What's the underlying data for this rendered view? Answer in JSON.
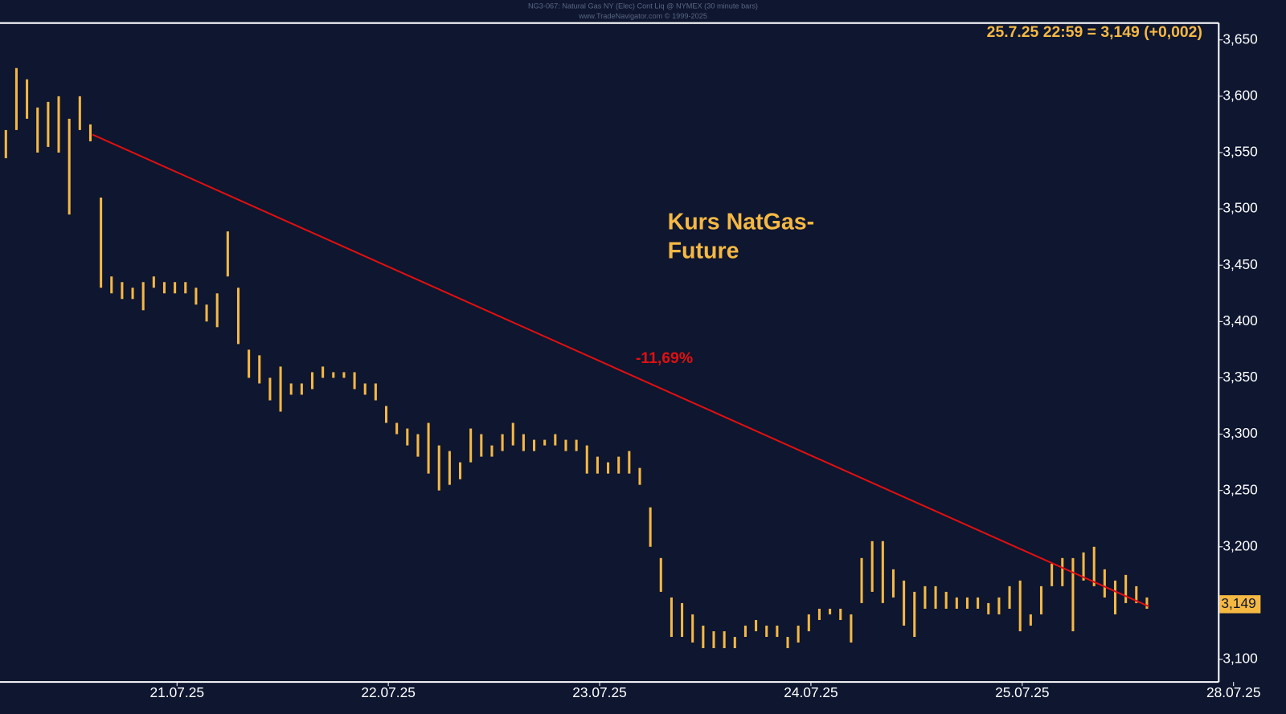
{
  "chart_data": {
    "type": "range",
    "header": "NG3-067: Natural Gas NY (Elec) Cont Liq @ NYMEX (30 minute bars)",
    "source": "www.TradeNavigator.com © 1999-2025",
    "title": "Kurs NatGas-\nFuture",
    "quote": "25.7.25 22:59 = 3,149 (+0,002)",
    "last": {
      "value": 3.149,
      "label": "3,149"
    },
    "color": "#f5b843",
    "x": [
      0.19,
      0.24,
      0.29,
      0.34,
      0.39,
      0.44,
      0.49,
      0.54,
      0.59,
      0.64,
      0.69,
      0.74,
      0.79,
      0.84,
      0.89,
      0.94,
      0.99,
      1.04,
      1.09,
      1.14,
      1.19,
      1.24,
      1.29,
      1.34,
      1.39,
      1.44,
      1.49,
      1.54,
      1.59,
      1.64,
      1.69,
      1.74,
      1.79,
      1.84,
      1.89,
      1.94,
      1.99,
      2.04,
      2.09,
      2.14,
      2.19,
      2.24,
      2.29,
      2.34,
      2.39,
      2.44,
      2.49,
      2.54,
      2.59,
      2.64,
      2.69,
      2.74,
      2.79,
      2.84,
      2.89,
      2.94,
      2.99,
      3.04,
      3.09,
      3.14,
      3.19,
      3.24,
      3.29,
      3.34,
      3.39,
      3.44,
      3.49,
      3.54,
      3.59,
      3.64,
      3.69,
      3.74,
      3.79,
      3.84,
      3.89,
      3.94,
      3.99,
      4.04,
      4.09,
      4.14,
      4.19,
      4.24,
      4.29,
      4.34,
      4.39,
      4.44,
      4.49,
      4.54,
      4.59,
      4.64,
      4.69,
      4.74,
      4.79,
      4.84,
      4.89,
      4.94,
      4.99,
      5.04,
      5.09,
      5.14,
      5.19,
      5.24,
      5.29,
      5.34,
      5.39,
      5.44,
      5.49,
      5.54,
      5.59
    ],
    "high": [
      3.57,
      3.625,
      3.615,
      3.59,
      3.595,
      3.6,
      3.58,
      3.6,
      3.575,
      3.51,
      3.44,
      3.435,
      3.43,
      3.435,
      3.44,
      3.435,
      3.435,
      3.435,
      3.43,
      3.415,
      3.425,
      3.48,
      3.43,
      3.375,
      3.37,
      3.35,
      3.36,
      3.345,
      3.345,
      3.355,
      3.36,
      3.355,
      3.355,
      3.355,
      3.345,
      3.345,
      3.325,
      3.31,
      3.305,
      3.3,
      3.31,
      3.29,
      3.285,
      3.275,
      3.305,
      3.3,
      3.29,
      3.3,
      3.31,
      3.3,
      3.295,
      3.295,
      3.3,
      3.295,
      3.295,
      3.29,
      3.28,
      3.275,
      3.28,
      3.285,
      3.27,
      3.235,
      3.19,
      3.155,
      3.15,
      3.14,
      3.13,
      3.125,
      3.125,
      3.12,
      3.13,
      3.135,
      3.13,
      3.13,
      3.12,
      3.13,
      3.14,
      3.145,
      3.145,
      3.145,
      3.14,
      3.19,
      3.205,
      3.205,
      3.18,
      3.17,
      3.16,
      3.165,
      3.165,
      3.16,
      3.155,
      3.155,
      3.155,
      3.15,
      3.155,
      3.165,
      3.17,
      3.14,
      3.165,
      3.185,
      3.19,
      3.19,
      3.195,
      3.2,
      3.18,
      3.17,
      3.175,
      3.165,
      3.155
    ],
    "low": [
      3.545,
      3.57,
      3.58,
      3.55,
      3.555,
      3.55,
      3.495,
      3.57,
      3.56,
      3.43,
      3.425,
      3.42,
      3.42,
      3.41,
      3.43,
      3.425,
      3.425,
      3.425,
      3.415,
      3.4,
      3.395,
      3.44,
      3.38,
      3.35,
      3.345,
      3.33,
      3.32,
      3.335,
      3.335,
      3.34,
      3.35,
      3.35,
      3.35,
      3.34,
      3.335,
      3.33,
      3.31,
      3.3,
      3.29,
      3.28,
      3.265,
      3.25,
      3.255,
      3.26,
      3.275,
      3.28,
      3.28,
      3.285,
      3.29,
      3.285,
      3.285,
      3.29,
      3.29,
      3.285,
      3.285,
      3.265,
      3.265,
      3.265,
      3.265,
      3.265,
      3.255,
      3.2,
      3.16,
      3.12,
      3.12,
      3.115,
      3.11,
      3.11,
      3.11,
      3.11,
      3.12,
      3.125,
      3.12,
      3.12,
      3.11,
      3.115,
      3.125,
      3.135,
      3.14,
      3.135,
      3.115,
      3.15,
      3.16,
      3.15,
      3.155,
      3.13,
      3.12,
      3.145,
      3.145,
      3.145,
      3.145,
      3.145,
      3.145,
      3.14,
      3.14,
      3.145,
      3.125,
      3.13,
      3.14,
      3.165,
      3.165,
      3.125,
      3.17,
      3.165,
      3.155,
      3.14,
      3.15,
      3.15,
      3.145
    ],
    "trendline": {
      "x": [
        0.6,
        5.6
      ],
      "values": [
        3.566,
        3.147
      ],
      "color": "#e01010",
      "label": "-11,69%"
    },
    "xlim": [
      0.17,
      5.93
    ],
    "ylim": [
      3.08,
      3.665
    ],
    "xticks": [
      {
        "value": 1,
        "label": "21.07.25"
      },
      {
        "value": 2,
        "label": "22.07.25"
      },
      {
        "value": 3,
        "label": "23.07.25"
      },
      {
        "value": 4,
        "label": "24.07.25"
      },
      {
        "value": 5,
        "label": "25.07.25"
      },
      {
        "value": 6,
        "label": "28.07.25"
      }
    ],
    "yticks": [
      {
        "value": 3.65,
        "label": "3,650"
      },
      {
        "value": 3.6,
        "label": "3,600"
      },
      {
        "value": 3.55,
        "label": "3,550"
      },
      {
        "value": 3.5,
        "label": "3,500"
      },
      {
        "value": 3.45,
        "label": "3,450"
      },
      {
        "value": 3.4,
        "label": "3,400"
      },
      {
        "value": 3.35,
        "label": "3,350"
      },
      {
        "value": 3.3,
        "label": "3,300"
      },
      {
        "value": 3.25,
        "label": "3,250"
      },
      {
        "value": 3.2,
        "label": "3,200"
      },
      {
        "value": 3.15,
        "label": "3,150"
      },
      {
        "value": 3.1,
        "label": "3,100"
      }
    ]
  }
}
